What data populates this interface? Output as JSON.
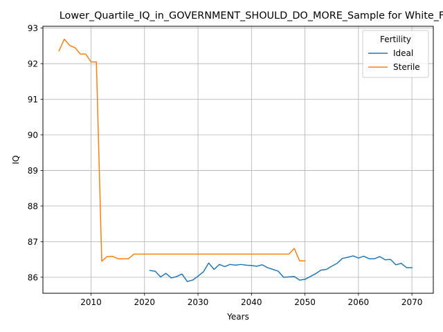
{
  "chart_data": {
    "type": "line",
    "title": "Lower_Quartile_IQ_in_GOVERNMENT_SHOULD_DO_MORE_Sample for White_F",
    "xlabel": "Years",
    "ylabel": "IQ",
    "xlim": [
      2001,
      2074
    ],
    "ylim": [
      85.55,
      93.05
    ],
    "xticks": [
      2010,
      2020,
      2030,
      2040,
      2050,
      2060,
      2070
    ],
    "yticks": [
      86,
      87,
      88,
      89,
      90,
      91,
      92,
      93
    ],
    "grid": true,
    "legend": {
      "title": "Fertility",
      "placement": "top-right"
    },
    "series": [
      {
        "name": "Ideal",
        "color": "#1f77b4",
        "x": [
          2021,
          2022,
          2023,
          2024,
          2025,
          2026,
          2027,
          2028,
          2029,
          2030,
          2031,
          2032,
          2033,
          2034,
          2035,
          2036,
          2037,
          2038,
          2039,
          2040,
          2041,
          2042,
          2043,
          2044,
          2045,
          2046,
          2047,
          2048,
          2049,
          2050,
          2051,
          2052,
          2053,
          2054,
          2055,
          2056,
          2057,
          2058,
          2059,
          2060,
          2061,
          2062,
          2063,
          2064,
          2065,
          2066,
          2067,
          2068,
          2069,
          2070
        ],
        "y": [
          86.19,
          86.17,
          86.01,
          86.11,
          85.98,
          86.02,
          86.09,
          85.88,
          85.92,
          86.03,
          86.15,
          86.4,
          86.22,
          86.36,
          86.3,
          86.36,
          86.34,
          86.36,
          86.34,
          86.33,
          86.31,
          86.35,
          86.27,
          86.22,
          86.17,
          86.0,
          86.01,
          86.02,
          85.92,
          85.94,
          86.02,
          86.1,
          86.2,
          86.22,
          86.31,
          86.39,
          86.53,
          86.56,
          86.6,
          86.54,
          86.59,
          86.52,
          86.52,
          86.58,
          86.49,
          86.5,
          86.35,
          86.39,
          86.27,
          86.27
        ]
      },
      {
        "name": "Sterile",
        "color": "#ff7f0e",
        "x": [
          2004,
          2005,
          2006,
          2007,
          2008,
          2009,
          2010,
          2011,
          2012,
          2013,
          2014,
          2015,
          2016,
          2017,
          2018,
          2019,
          2020,
          2021,
          2022,
          2023,
          2024,
          2025,
          2026,
          2027,
          2028,
          2029,
          2030,
          2031,
          2032,
          2033,
          2034,
          2035,
          2036,
          2037,
          2038,
          2039,
          2040,
          2041,
          2042,
          2043,
          2044,
          2045,
          2046,
          2047,
          2048,
          2049,
          2050
        ],
        "y": [
          92.36,
          92.69,
          92.51,
          92.45,
          92.27,
          92.27,
          92.05,
          92.05,
          86.45,
          86.58,
          86.59,
          86.52,
          86.52,
          86.52,
          86.65,
          86.65,
          86.65,
          86.65,
          86.65,
          86.65,
          86.65,
          86.65,
          86.65,
          86.65,
          86.65,
          86.65,
          86.65,
          86.65,
          86.65,
          86.65,
          86.65,
          86.65,
          86.65,
          86.65,
          86.65,
          86.65,
          86.65,
          86.65,
          86.65,
          86.65,
          86.65,
          86.65,
          86.65,
          86.65,
          86.81,
          86.46,
          86.46
        ]
      }
    ]
  }
}
